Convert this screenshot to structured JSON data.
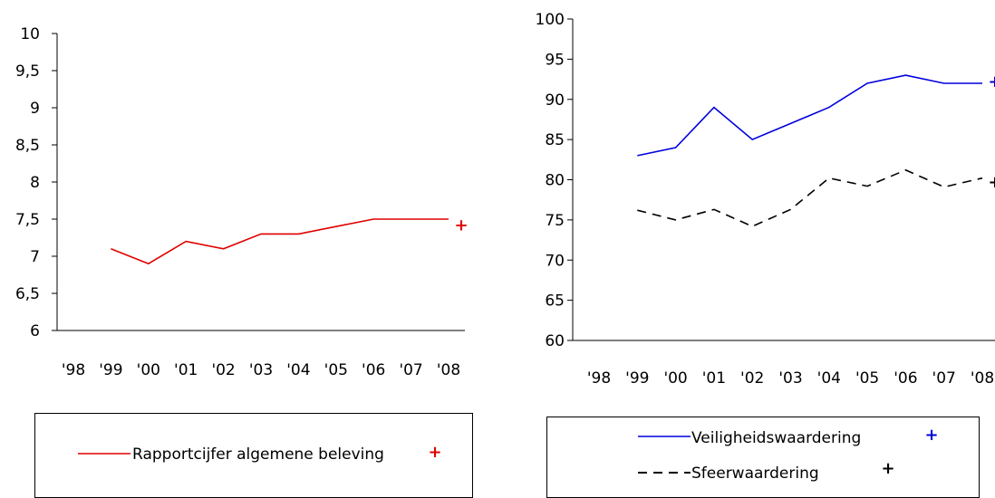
{
  "chart_data": [
    {
      "type": "line",
      "categories": [
        "'98",
        "'99",
        "'00",
        "'01",
        "'02",
        "'03",
        "'04",
        "'05",
        "'06",
        "'07",
        "'08"
      ],
      "ylim": [
        6,
        10
      ],
      "yticks": [
        "6",
        "6,5",
        "7",
        "7,5",
        "8",
        "8,5",
        "9",
        "9,5",
        "10"
      ],
      "series": [
        {
          "name": "Rapportcijfer algemene beleving",
          "color": "#e00000",
          "dash": "solid",
          "values": [
            null,
            7.1,
            6.9,
            7.2,
            7.1,
            7.3,
            7.3,
            7.4,
            7.5,
            7.5,
            7.5
          ],
          "marker": {
            "category": "'08",
            "value": 7.42,
            "symbol": "+"
          }
        }
      ],
      "legend": "bottom"
    },
    {
      "type": "line",
      "categories": [
        "'98",
        "'99",
        "'00",
        "'01",
        "'02",
        "'03",
        "'04",
        "'05",
        "'06",
        "'07",
        "'08"
      ],
      "ylim": [
        60,
        100
      ],
      "yticks": [
        "60",
        "65",
        "70",
        "75",
        "80",
        "85",
        "90",
        "95",
        "100"
      ],
      "series": [
        {
          "name": "Veiligheidswaardering",
          "color": "#0000dd",
          "dash": "solid",
          "values": [
            null,
            83,
            84,
            89,
            85,
            87,
            89,
            92,
            93,
            92,
            92
          ],
          "marker": {
            "category": "'08",
            "value": 92.2,
            "symbol": "+"
          }
        },
        {
          "name": "Sfeerwaardering",
          "color": "#000000",
          "dash": "dashed",
          "values": [
            null,
            76.2,
            75,
            76.3,
            74.2,
            76.3,
            80.2,
            79.2,
            81.2,
            79.1,
            80.2
          ],
          "marker": {
            "category": "'08",
            "value": 79.7,
            "symbol": "+"
          }
        }
      ],
      "legend": "bottom"
    }
  ]
}
